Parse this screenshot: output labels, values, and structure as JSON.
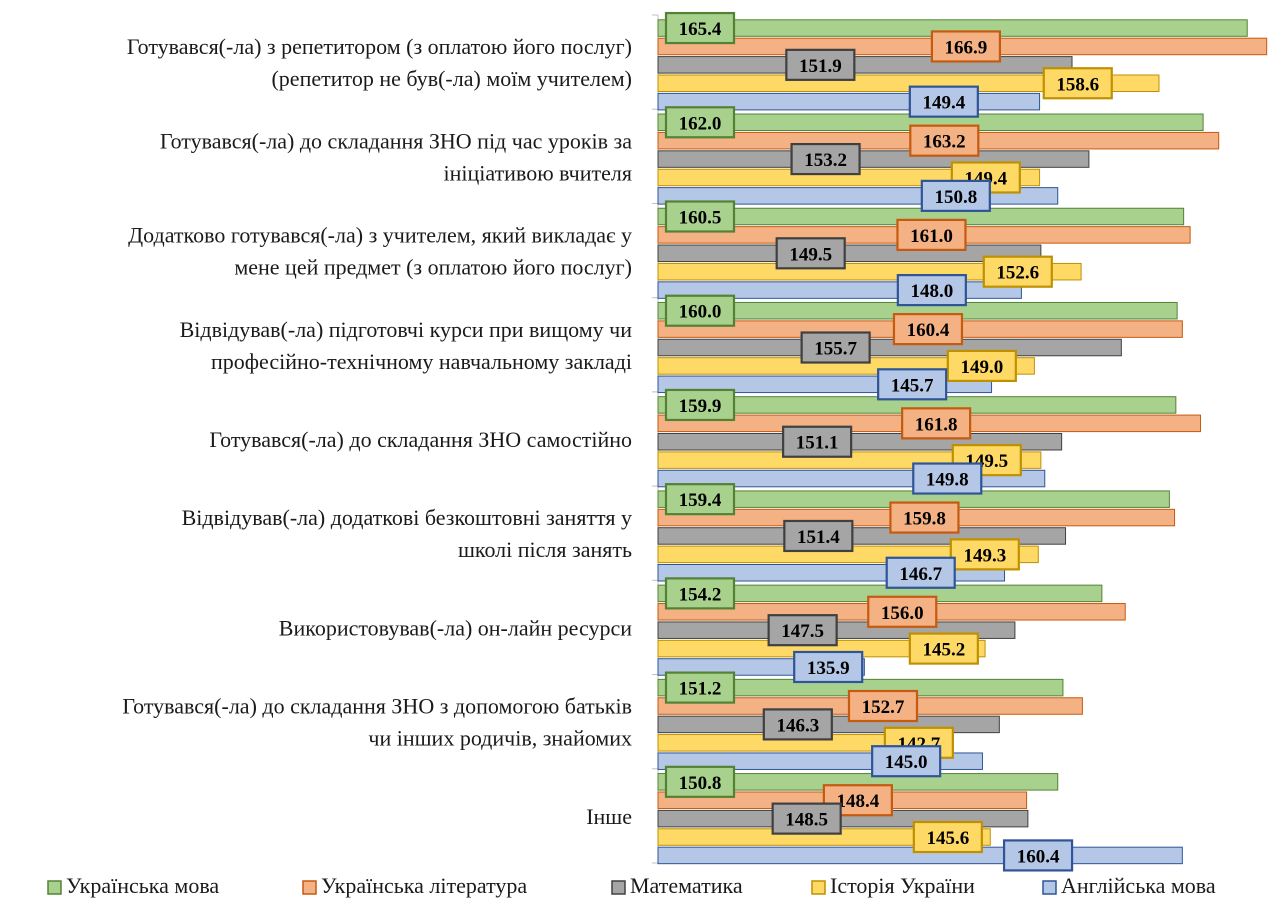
{
  "chart_data": {
    "type": "bar",
    "orientation": "horizontal",
    "title": "",
    "xlabel": "",
    "ylabel": "",
    "xlim": [
      120,
      167
    ],
    "grid": false,
    "legend_position": "bottom",
    "categories": [
      [
        "Готувався(-ла) з репетитором (з оплатою його послуг)",
        "(репетитор не був(-ла) моїм учителем)"
      ],
      [
        "Готувався(-ла) до складання ЗНО під час уроків за",
        "ініціативою вчителя"
      ],
      [
        "Додатково готувався(-ла) з учителем, який викладає у",
        "мене цей предмет (з оплатою його послуг)"
      ],
      [
        "Відвідував(-ла) підготовчі курси при вищому чи",
        "професійно-технічному навчальному закладі"
      ],
      [
        "Готувався(-ла) до складання ЗНО самостійно"
      ],
      [
        "Відвідував(-ла) додаткові безкоштовні заняття у",
        "школі після занять"
      ],
      [
        "Використовував(-ла) он-лайн ресурси"
      ],
      [
        "Готувався(-ла) до складання ЗНО з допомогою батьків",
        "чи інших родичів, знайомих"
      ],
      [
        "Інше"
      ]
    ],
    "series": [
      {
        "name": "Українська мова",
        "fill": "#a9d18e",
        "stroke": "#548235",
        "values": [
          165.4,
          162.0,
          160.5,
          160.0,
          159.9,
          159.4,
          154.2,
          151.2,
          150.8
        ]
      },
      {
        "name": "Українська література",
        "fill": "#f4b183",
        "stroke": "#c55a11",
        "values": [
          166.9,
          163.2,
          161.0,
          160.4,
          161.8,
          159.8,
          156.0,
          152.7,
          148.4
        ]
      },
      {
        "name": "Математика",
        "fill": "#a5a5a5",
        "stroke": "#404040",
        "values": [
          151.9,
          153.2,
          149.5,
          155.7,
          151.1,
          151.4,
          147.5,
          146.3,
          148.5
        ]
      },
      {
        "name": "Історія України",
        "fill": "#ffd966",
        "stroke": "#bf9000",
        "values": [
          158.6,
          149.4,
          152.6,
          149.0,
          149.5,
          149.3,
          145.2,
          142.7,
          145.6
        ]
      },
      {
        "name": "Англійська мова",
        "fill": "#b4c7e7",
        "stroke": "#2f5597",
        "values": [
          149.4,
          150.8,
          148.0,
          145.7,
          149.8,
          146.7,
          135.9,
          145.0,
          160.4
        ]
      }
    ]
  }
}
